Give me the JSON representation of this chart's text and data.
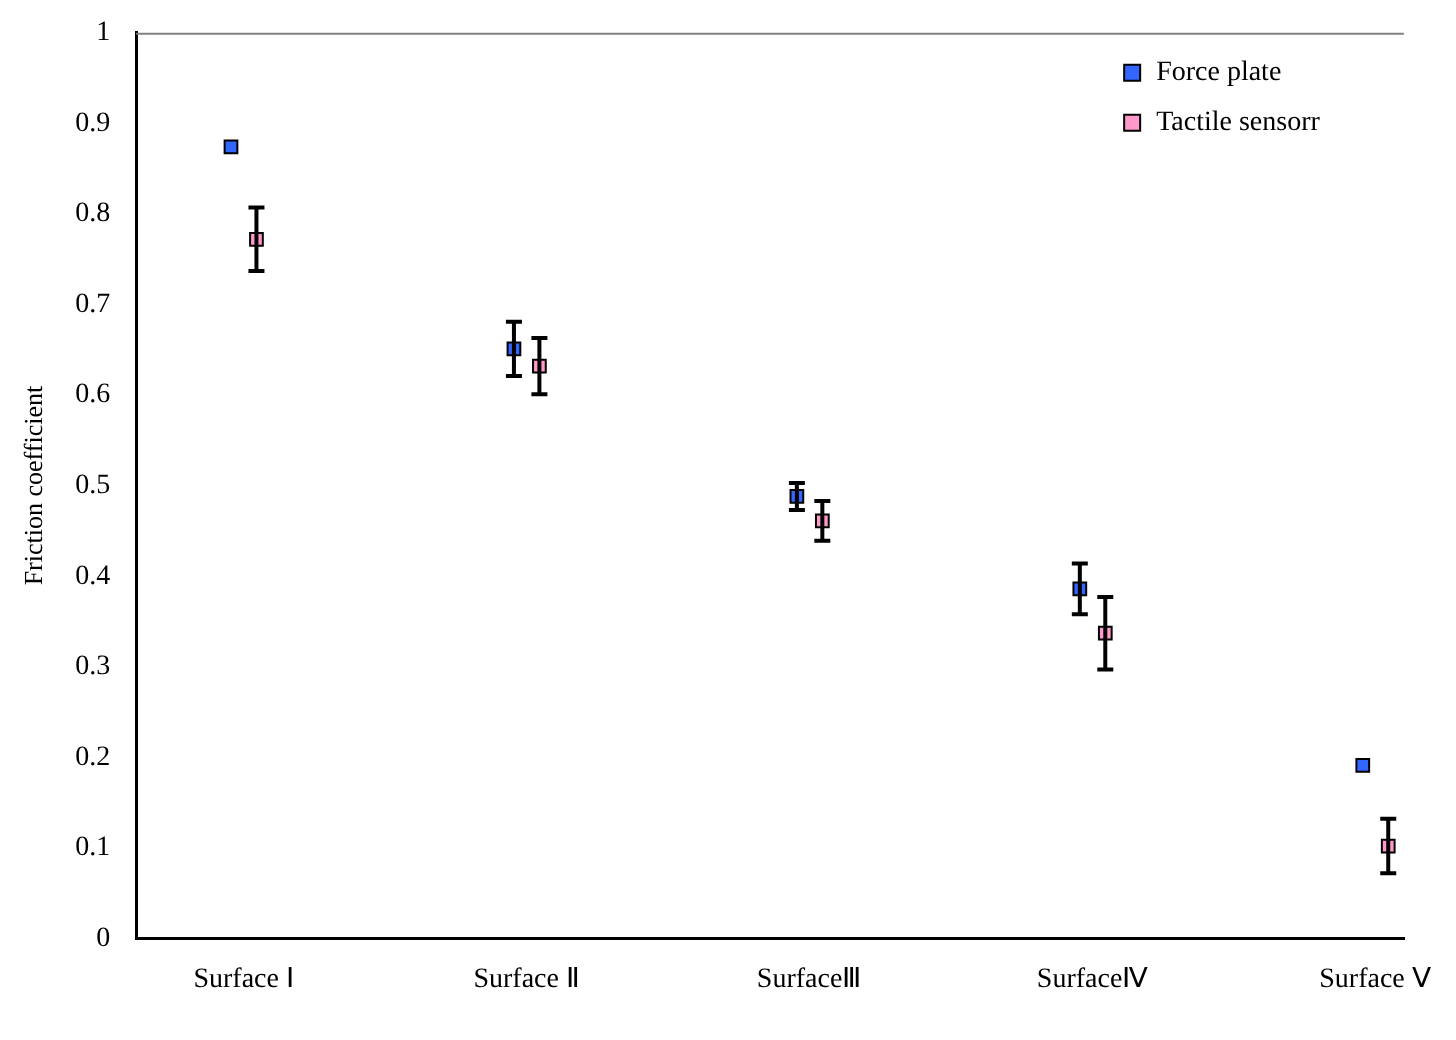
{
  "chart_data": {
    "type": "scatter",
    "ylabel": "Friction coefficient",
    "categories": [
      "Surface Ⅰ",
      "Surface Ⅱ",
      "SurfaceⅢ",
      "SurfaceⅣ",
      "Surface Ⅴ"
    ],
    "series": [
      {
        "name": "Force plate",
        "color": "#3366ff",
        "values": [
          0.874,
          0.651,
          0.488,
          0.386,
          0.191
        ],
        "errors": [
          null,
          0.03,
          0.015,
          0.028,
          null
        ]
      },
      {
        "name": "Tactile sensorr",
        "color": "#ff99cc",
        "values": [
          0.772,
          0.632,
          0.461,
          0.337,
          0.102
        ],
        "errors": [
          0.035,
          0.031,
          0.022,
          0.04,
          0.03
        ]
      }
    ],
    "ylim": [
      0,
      1
    ],
    "yticks": [
      0,
      0.1,
      0.2,
      0.3,
      0.4,
      0.5,
      0.6,
      0.7,
      0.8,
      0.9,
      1
    ],
    "grid": false,
    "legend": "top right",
    "marker": "square"
  }
}
